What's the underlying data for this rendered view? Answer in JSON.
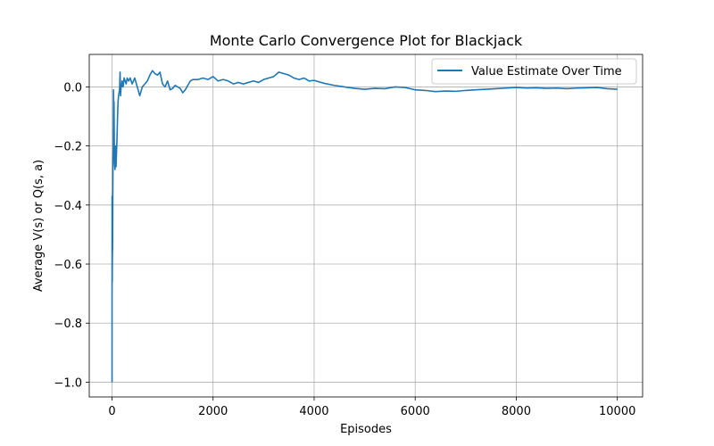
{
  "chart_data": {
    "type": "line",
    "title": "Monte Carlo Convergence Plot for Blackjack",
    "xlabel": "Episodes",
    "ylabel": "Average V(s) or Q(s, a)",
    "xlim": [
      -450,
      10500
    ],
    "ylim": [
      -1.05,
      0.11
    ],
    "x_ticks": [
      0,
      2000,
      4000,
      6000,
      8000,
      10000
    ],
    "x_tick_labels": [
      "0",
      "2000",
      "4000",
      "6000",
      "8000",
      "10000"
    ],
    "y_ticks": [
      0.0,
      -0.2,
      -0.4,
      -0.6,
      -0.8,
      -1.0
    ],
    "y_tick_labels": [
      "0.0",
      "−0.2",
      "−0.4",
      "−0.6",
      "−0.8",
      "−1.0"
    ],
    "grid": true,
    "legend_position": "top-right",
    "series": [
      {
        "name": "Value Estimate Over Time",
        "color": "#1f77b4",
        "x": [
          1,
          2,
          3,
          5,
          8,
          12,
          16,
          20,
          25,
          30,
          35,
          40,
          45,
          50,
          60,
          70,
          80,
          90,
          100,
          110,
          120,
          130,
          140,
          150,
          160,
          170,
          180,
          190,
          200,
          220,
          240,
          260,
          280,
          300,
          330,
          360,
          400,
          450,
          500,
          550,
          600,
          650,
          700,
          750,
          800,
          850,
          900,
          950,
          1000,
          1050,
          1100,
          1150,
          1200,
          1250,
          1300,
          1350,
          1400,
          1450,
          1500,
          1550,
          1600,
          1700,
          1800,
          1900,
          2000,
          2100,
          2200,
          2300,
          2400,
          2500,
          2600,
          2700,
          2800,
          2900,
          3000,
          3100,
          3200,
          3300,
          3400,
          3500,
          3600,
          3700,
          3800,
          3900,
          4000,
          4200,
          4400,
          4600,
          4800,
          5000,
          5200,
          5400,
          5600,
          5800,
          6000,
          6200,
          6400,
          6600,
          6800,
          7000,
          7200,
          7400,
          7600,
          7800,
          8000,
          8200,
          8400,
          8600,
          8800,
          9000,
          9200,
          9400,
          9600,
          9800,
          10000
        ],
        "y": [
          -1.0,
          -0.37,
          -0.62,
          -0.66,
          -0.56,
          -0.55,
          -0.36,
          -0.25,
          -0.2,
          -0.01,
          -0.1,
          -0.05,
          -0.18,
          -0.26,
          -0.28,
          -0.2,
          -0.27,
          -0.22,
          -0.17,
          -0.1,
          -0.05,
          -0.03,
          -0.02,
          -0.01,
          0.05,
          -0.03,
          0.0,
          0.0,
          0.02,
          0.0,
          0.03,
          0.02,
          0.01,
          0.03,
          0.02,
          0.03,
          0.01,
          0.03,
          0.0,
          -0.03,
          0.0,
          0.01,
          0.02,
          0.04,
          0.055,
          0.045,
          0.04,
          0.05,
          0.01,
          0.0,
          0.02,
          -0.01,
          -0.005,
          0.005,
          0.0,
          -0.005,
          -0.02,
          -0.01,
          0.005,
          0.02,
          0.025,
          0.025,
          0.03,
          0.025,
          0.035,
          0.02,
          0.025,
          0.02,
          0.01,
          0.015,
          0.01,
          0.015,
          0.02,
          0.015,
          0.025,
          0.03,
          0.035,
          0.05,
          0.045,
          0.04,
          0.03,
          0.025,
          0.03,
          0.02,
          0.022,
          0.012,
          0.005,
          0.0,
          -0.005,
          -0.008,
          -0.005,
          -0.006,
          0.0,
          -0.002,
          -0.01,
          -0.012,
          -0.016,
          -0.014,
          -0.015,
          -0.012,
          -0.01,
          -0.008,
          -0.006,
          -0.004,
          -0.002,
          -0.004,
          -0.003,
          -0.005,
          -0.004,
          -0.006,
          -0.004,
          -0.003,
          -0.002,
          -0.006,
          -0.008
        ]
      }
    ]
  }
}
